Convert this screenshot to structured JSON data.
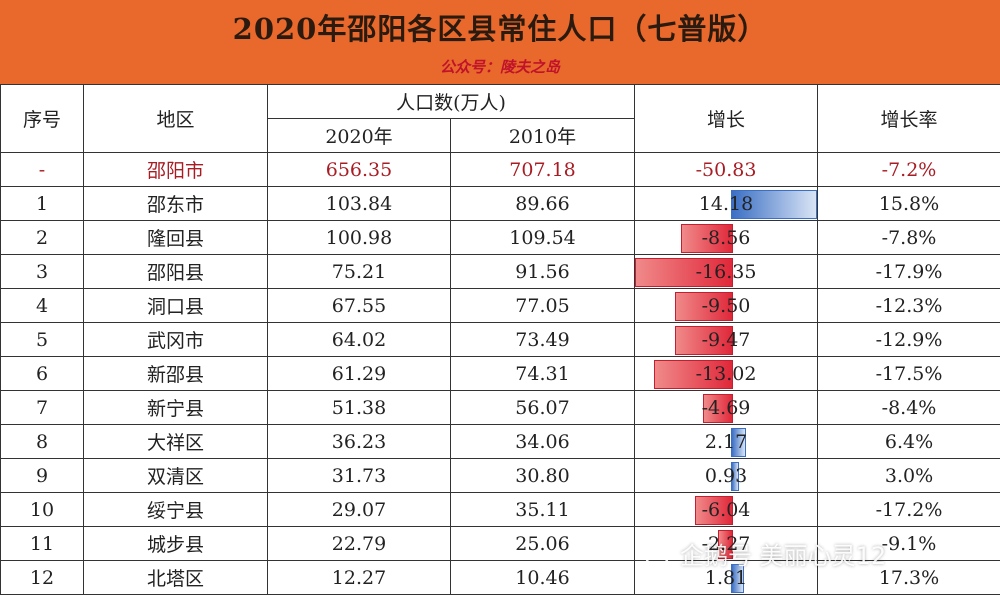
{
  "header": {
    "title": "2020年邵阳各区县常住人口（七普版）",
    "subtitle": "公众号：陵夫之岛"
  },
  "columns": {
    "index": "序号",
    "region": "地区",
    "population": "人口数(万人)",
    "y2020": "2020年",
    "y2010": "2010年",
    "growth": "增长",
    "growth_rate": "增长率"
  },
  "chart_data": {
    "type": "table",
    "title": "2020年邵阳各区县常住人口（七普版）",
    "headers": [
      "序号",
      "地区",
      "2020年",
      "2010年",
      "增长",
      "增长率"
    ],
    "rows": [
      {
        "idx": "-",
        "region": "邵阳市",
        "p2020": "656.35",
        "p2010": "707.18",
        "growth": "-50.83",
        "growth_value": -50.83,
        "rate": "-7.2%",
        "is_total": true
      },
      {
        "idx": "1",
        "region": "邵东市",
        "p2020": "103.84",
        "p2010": "89.66",
        "growth": "14.18",
        "growth_value": 14.18,
        "rate": "15.8%"
      },
      {
        "idx": "2",
        "region": "隆回县",
        "p2020": "100.98",
        "p2010": "109.54",
        "growth": "-8.56",
        "growth_value": -8.56,
        "rate": "-7.8%"
      },
      {
        "idx": "3",
        "region": "邵阳县",
        "p2020": "75.21",
        "p2010": "91.56",
        "growth": "-16.35",
        "growth_value": -16.35,
        "rate": "-17.9%"
      },
      {
        "idx": "4",
        "region": "洞口县",
        "p2020": "67.55",
        "p2010": "77.05",
        "growth": "-9.50",
        "growth_value": -9.5,
        "rate": "-12.3%"
      },
      {
        "idx": "5",
        "region": "武冈市",
        "p2020": "64.02",
        "p2010": "73.49",
        "growth": "-9.47",
        "growth_value": -9.47,
        "rate": "-12.9%"
      },
      {
        "idx": "6",
        "region": "新邵县",
        "p2020": "61.29",
        "p2010": "74.31",
        "growth": "-13.02",
        "growth_value": -13.02,
        "rate": "-17.5%"
      },
      {
        "idx": "7",
        "region": "新宁县",
        "p2020": "51.38",
        "p2010": "56.07",
        "growth": "-4.69",
        "growth_value": -4.69,
        "rate": "-8.4%"
      },
      {
        "idx": "8",
        "region": "大祥区",
        "p2020": "36.23",
        "p2010": "34.06",
        "growth": "2.17",
        "growth_value": 2.17,
        "rate": "6.4%"
      },
      {
        "idx": "9",
        "region": "双清区",
        "p2020": "31.73",
        "p2010": "30.80",
        "growth": "0.93",
        "growth_value": 0.93,
        "rate": "3.0%"
      },
      {
        "idx": "10",
        "region": "绥宁县",
        "p2020": "29.07",
        "p2010": "35.11",
        "growth": "-6.04",
        "growth_value": -6.04,
        "rate": "-17.2%"
      },
      {
        "idx": "11",
        "region": "城步县",
        "p2020": "22.79",
        "p2010": "25.06",
        "growth": "-2.27",
        "growth_value": -2.27,
        "rate": "-9.1%"
      },
      {
        "idx": "12",
        "region": "北塔区",
        "p2020": "12.27",
        "p2010": "10.46",
        "growth": "1.81",
        "growth_value": 1.81,
        "rate": "17.3%"
      }
    ],
    "bar_colors": {
      "negative": "#e0283a",
      "positive": "#3b6fc4"
    }
  },
  "watermark": {
    "text": "企鹅号 美丽心灵12",
    "icon": "penguin-logo-icon"
  }
}
